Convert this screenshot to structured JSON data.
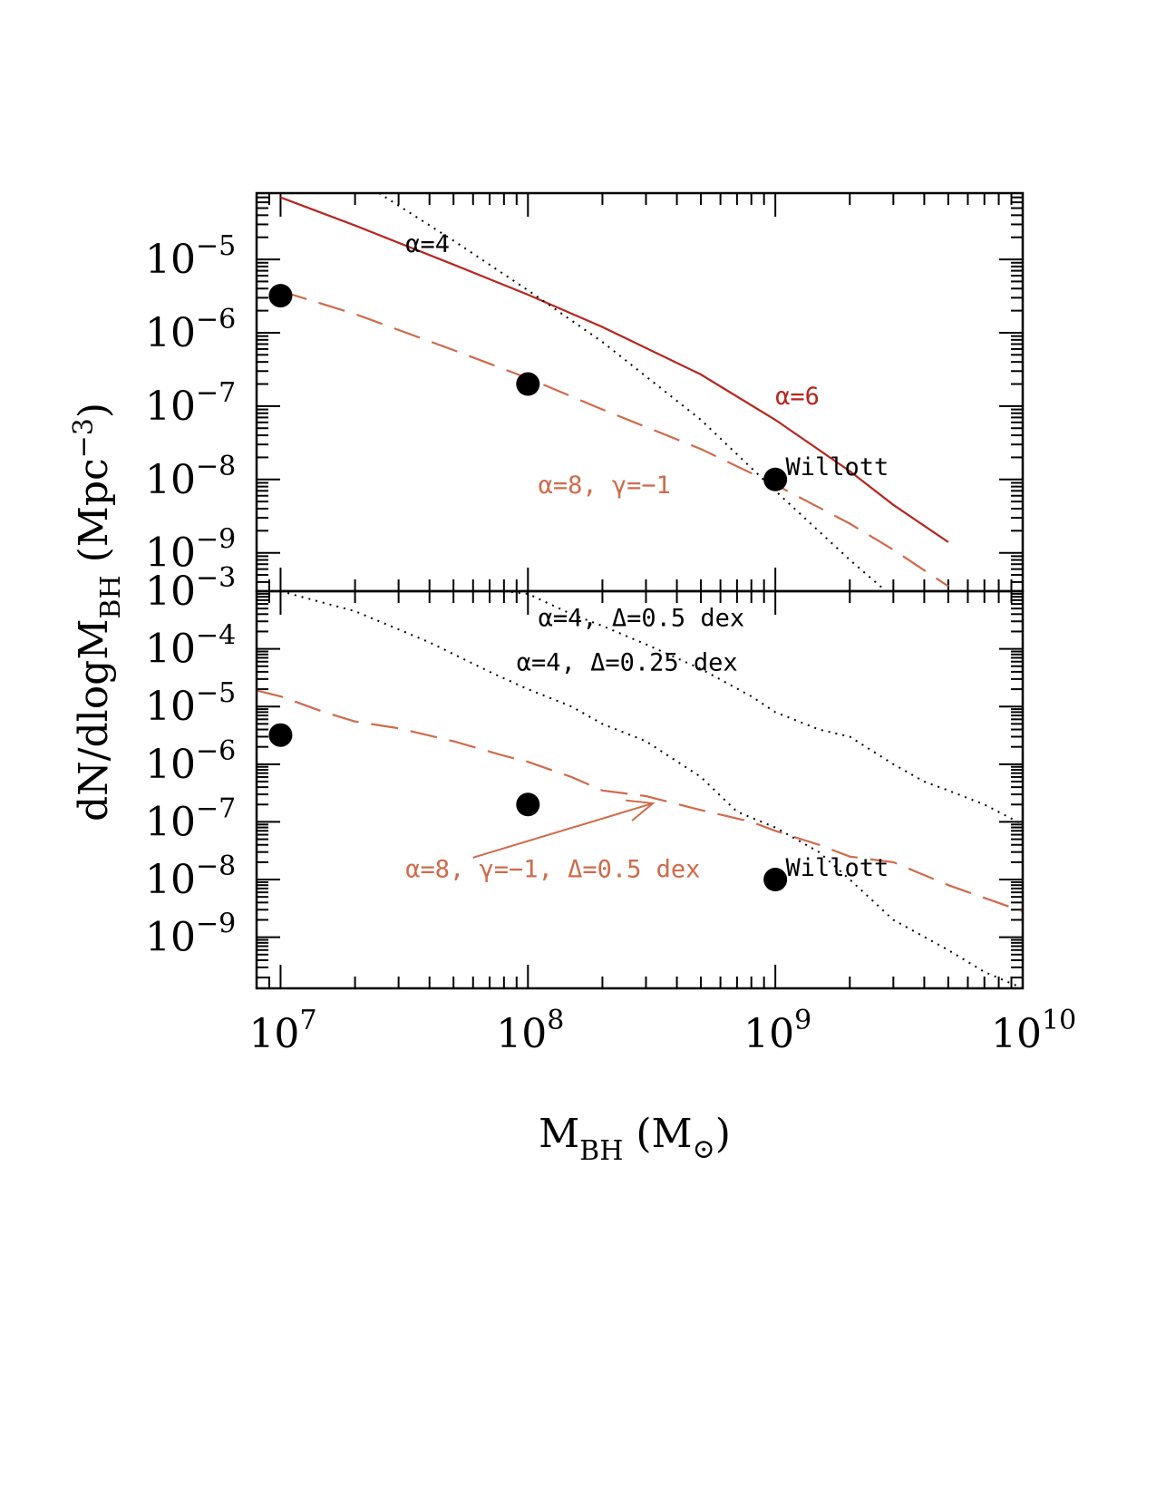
{
  "chart_data": [
    {
      "type": "line",
      "panel": "top",
      "xscale": "log",
      "yscale": "log",
      "xlim": [
        8000000.0,
        10000000000.0
      ],
      "ylim": [
        3e-10,
        8e-05
      ],
      "xlabel": "M_BH (M_⊙)",
      "ylabel": "dN/dlogM_BH (Mpc^-3)",
      "y_tick_labels": [
        {
          "base": "10",
          "exp": "−5",
          "value": 1e-05
        },
        {
          "base": "10",
          "exp": "−6",
          "value": 1e-06
        },
        {
          "base": "10",
          "exp": "−7",
          "value": 1e-07
        },
        {
          "base": "10",
          "exp": "−8",
          "value": 1e-08
        },
        {
          "base": "10",
          "exp": "−9",
          "value": 1e-09
        }
      ],
      "series": [
        {
          "name": "α=6",
          "style": "solid",
          "color": "#b5261e",
          "x": [
            10000000.0,
            20000000.0,
            50000000.0,
            100000000.0,
            200000000.0,
            500000000.0,
            1000000000.0,
            2000000000.0,
            3000000000.0,
            5000000000.0
          ],
          "y": [
            7e-05,
            2.9e-05,
            8.5e-06,
            3.3e-06,
            1.2e-06,
            2.7e-07,
            6.5e-08,
            1.3e-08,
            4.5e-09,
            1.4e-09
          ]
        },
        {
          "name": "α=8, γ=−1",
          "style": "dashed",
          "color": "#d06a4a",
          "x": [
            10000000.0,
            20000000.0,
            50000000.0,
            100000000.0,
            200000000.0,
            500000000.0,
            1000000000.0,
            2000000000.0,
            3000000000.0,
            5000000000.0
          ],
          "y": [
            3.7e-06,
            1.8e-06,
            5.8e-07,
            2.4e-07,
            9e-08,
            2.6e-08,
            8.5e-09,
            2.5e-09,
            1.1e-09,
            3.5e-10
          ]
        },
        {
          "name": "α=4",
          "style": "dotted",
          "color": "#000000",
          "x": [
            25000000.0,
            50000000.0,
            100000000.0,
            200000000.0,
            500000000.0,
            1000000000.0,
            2000000000.0,
            2800000000.0
          ],
          "y": [
            8e-05,
            1.8e-05,
            3.8e-06,
            7.5e-07,
            6.5e-08,
            7e-09,
            8e-10,
            3e-10
          ]
        }
      ],
      "points": {
        "name": "Willott",
        "x": [
          10000000.0,
          100000000.0,
          1000000000.0
        ],
        "y": [
          3.2e-06,
          2e-07,
          1e-08
        ]
      },
      "annotations": [
        {
          "id": "alpha4",
          "text": "α=4",
          "color": "#000000",
          "x": 32000000.0,
          "y": 1.25e-05
        },
        {
          "id": "alpha6",
          "text": "α=6",
          "color": "#b5261e",
          "x": 1000000000.0,
          "y": 1.05e-07
        },
        {
          "id": "alpha8",
          "text": "α=8, γ=−1",
          "color": "#d06a4a",
          "x": 110000000.0,
          "y": 6.5e-09
        },
        {
          "id": "willott",
          "text": "Willott",
          "color": "#000000",
          "x": 1100000000.0,
          "y": 1.15e-08
        }
      ]
    },
    {
      "type": "line",
      "panel": "bottom",
      "xscale": "log",
      "yscale": "log",
      "xlim": [
        8000000.0,
        10000000000.0
      ],
      "ylim": [
        1.3e-10,
        0.001
      ],
      "xlabel": "M_BH (M_⊙)",
      "x_tick_labels": [
        {
          "base": "10",
          "exp": "7",
          "value": 10000000.0
        },
        {
          "base": "10",
          "exp": "8",
          "value": 100000000.0
        },
        {
          "base": "10",
          "exp": "9",
          "value": 1000000000.0
        },
        {
          "base": "10",
          "exp": "10",
          "value": 10000000000.0
        }
      ],
      "y_tick_labels": [
        {
          "base": "10",
          "exp": "−3",
          "value": 0.001
        },
        {
          "base": "10",
          "exp": "−4",
          "value": 0.0001
        },
        {
          "base": "10",
          "exp": "−5",
          "value": 1e-05
        },
        {
          "base": "10",
          "exp": "−6",
          "value": 1e-06
        },
        {
          "base": "10",
          "exp": "−7",
          "value": 1e-07
        },
        {
          "base": "10",
          "exp": "−8",
          "value": 1e-08
        },
        {
          "base": "10",
          "exp": "−9",
          "value": 1e-09
        }
      ],
      "series": [
        {
          "name": "α=8, γ=−1, Δ=0.5 dex",
          "style": "dashed",
          "color": "#d06a4a",
          "x": [
            8000000.0,
            10000000.0,
            15000000.0,
            20000000.0,
            30000000.0,
            50000000.0,
            80000000.0,
            100000000.0,
            150000000.0,
            200000000.0,
            300000000.0,
            500000000.0,
            800000000.0,
            1000000000.0,
            1500000000.0,
            2000000000.0,
            3000000000.0,
            5000000000.0,
            10000000000.0
          ],
          "y": [
            1.9e-05,
            1.5e-05,
            8e-06,
            5.5e-06,
            4.2e-06,
            2.5e-06,
            1.4e-06,
            1.1e-06,
            6e-07,
            3.5e-07,
            2.8e-07,
            1.6e-07,
            1e-07,
            7e-08,
            4e-08,
            2.5e-08,
            2e-08,
            8e-09,
            2.8e-09
          ]
        },
        {
          "name": "α=4, Δ=0.5 dex",
          "style": "dotted",
          "color": "#000000",
          "x": [
            80000000.0,
            100000000.0,
            150000000.0,
            200000000.0,
            300000000.0,
            500000000.0,
            800000000.0,
            1000000000.0,
            1500000000.0,
            2000000000.0,
            3000000000.0,
            4000000000.0,
            5000000000.0,
            7000000000.0,
            10000000000.0
          ],
          "y": [
            0.001,
            0.0009,
            0.0004,
            0.00025,
            0.00012,
            4.5e-05,
            1.5e-05,
            8e-06,
            4e-06,
            3e-06,
            1e-06,
            5e-07,
            3.5e-07,
            2e-07,
            9e-08
          ]
        },
        {
          "name": "α=4, Δ=0.25 dex",
          "style": "dotted",
          "color": "#000000",
          "x": [
            10000000.0,
            20000000.0,
            40000000.0,
            70000000.0,
            100000000.0,
            150000000.0,
            200000000.0,
            300000000.0,
            500000000.0,
            700000000.0,
            1000000000.0,
            1500000000.0,
            2000000000.0,
            3000000000.0,
            5000000000.0,
            7000000000.0,
            10000000000.0
          ],
          "y": [
            0.001,
            0.00045,
            0.00013,
            4e-05,
            2e-05,
            1e-05,
            5e-06,
            2.5e-06,
            6e-07,
            1.5e-07,
            8e-08,
            3e-08,
            1e-08,
            2e-09,
            6e-10,
            2.5e-10,
            1.3e-10
          ]
        }
      ],
      "points": {
        "name": "Willott",
        "x": [
          10000000.0,
          100000000.0,
          1000000000.0
        ],
        "y": [
          3.2e-06,
          2e-07,
          1e-08
        ]
      },
      "annotations": [
        {
          "id": "a4d05",
          "text": "α=4, Δ=0.5 dex",
          "color": "#000000",
          "x": 110000000.0,
          "y": 0.00025
        },
        {
          "id": "a4d025",
          "text": "α=4, Δ=0.25 dex",
          "color": "#000000",
          "x": 90000000.0,
          "y": 4.2e-05
        },
        {
          "id": "a8d05",
          "text": "α=8, γ=−1, Δ=0.5 dex",
          "color": "#d06a4a",
          "x": 32000000.0,
          "y": 1.1e-08
        },
        {
          "id": "willott",
          "text": "Willott",
          "color": "#000000",
          "x": 1100000000.0,
          "y": 1.15e-08
        }
      ],
      "arrow": {
        "color": "#d06a4a",
        "from": {
          "x": 60000000.0,
          "y": 2.4e-08
        },
        "to": {
          "x": 320000000.0,
          "y": 2.1e-07
        }
      }
    }
  ],
  "axis_titles": {
    "y_main": "dN/dlogM",
    "y_sub": "BH",
    "y_unit_pre": " (Mpc",
    "y_unit_exp": "−3",
    "y_unit_post": ")",
    "x_main": "M",
    "x_sub": "BH",
    "x_unit_pre": " (M",
    "x_unit_sun": "⊙",
    "x_unit_post": ")"
  }
}
